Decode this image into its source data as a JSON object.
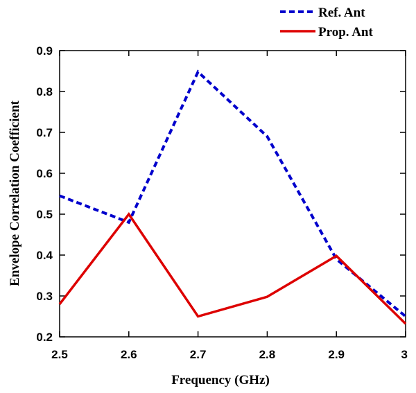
{
  "chart_data": {
    "type": "line",
    "title": "",
    "xlabel": "Frequency (GHz)",
    "ylabel": "Envelope Correlation Coefficient",
    "x": [
      2.5,
      2.6,
      2.7,
      2.8,
      2.9,
      3.0
    ],
    "xlim": [
      2.5,
      3.0
    ],
    "ylim": [
      0.2,
      0.9
    ],
    "x_ticks": [
      "2.5",
      "2.6",
      "2.7",
      "2.8",
      "2.9",
      "3"
    ],
    "y_ticks": [
      "0.2",
      "0.3",
      "0.4",
      "0.5",
      "0.6",
      "0.7",
      "0.8",
      "0.9"
    ],
    "grid": false,
    "legend_position": "top-right",
    "series": [
      {
        "name": "Ref. Ant",
        "values": [
          0.545,
          0.48,
          0.848,
          0.69,
          0.39,
          0.25
        ],
        "color": "#0000cc",
        "style": "dashed"
      },
      {
        "name": "Prop. Ant",
        "values": [
          0.28,
          0.5,
          0.25,
          0.298,
          0.398,
          0.232
        ],
        "color": "#dd0000",
        "style": "solid"
      }
    ]
  }
}
